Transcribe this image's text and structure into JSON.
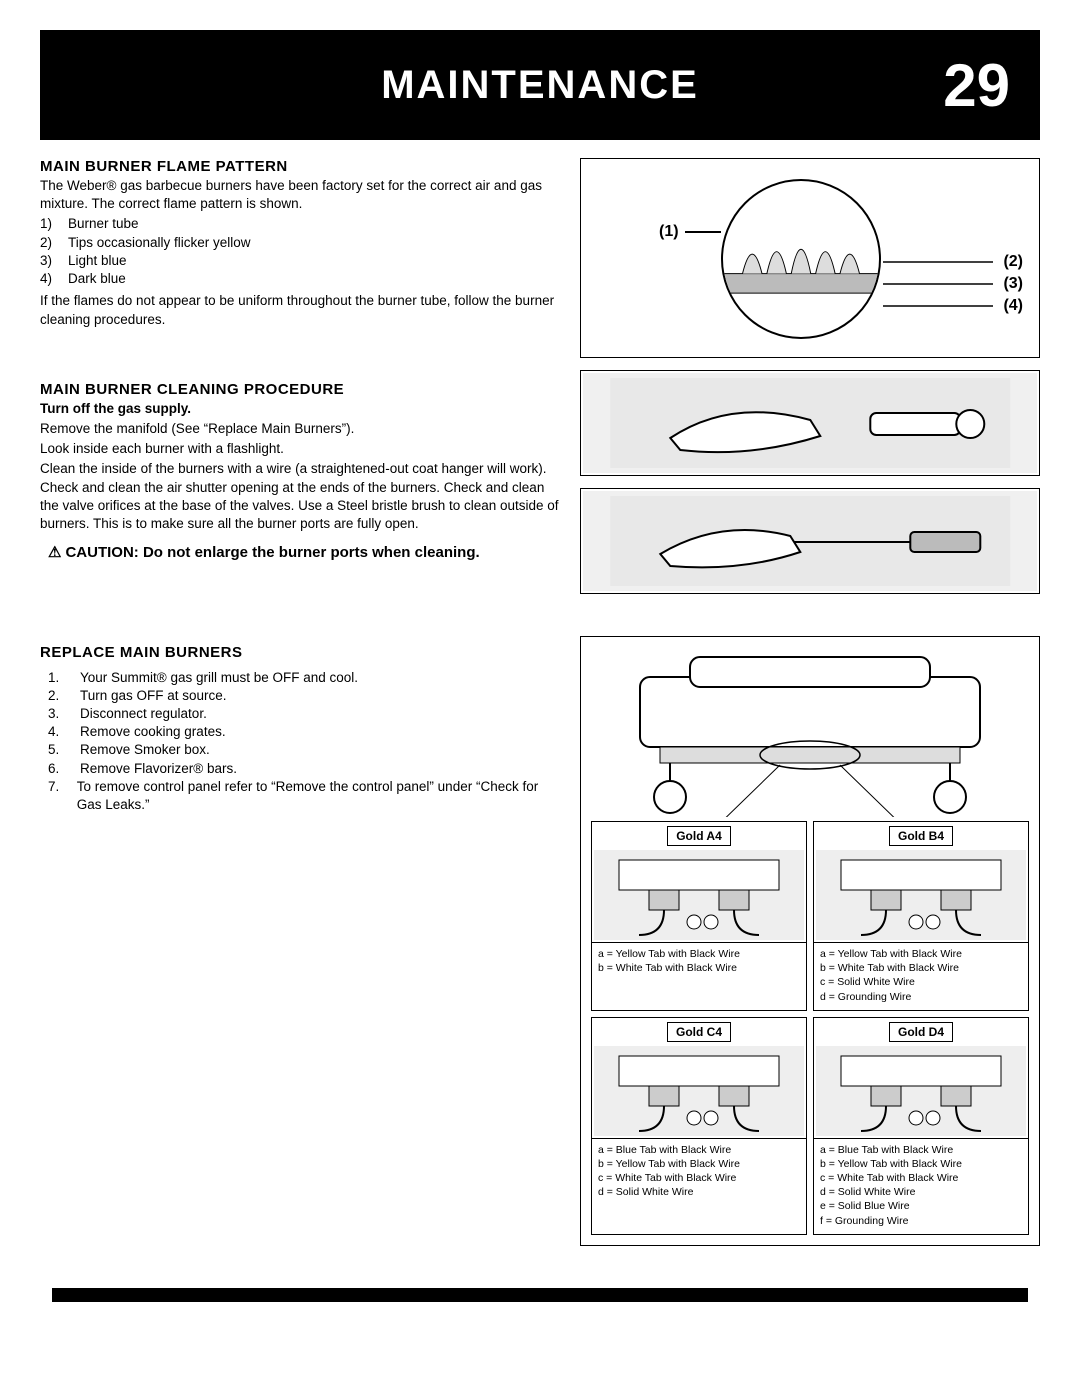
{
  "header": {
    "title": "MAINTENANCE",
    "page_number": "29",
    "bg_color": "#000000",
    "text_color": "#ffffff"
  },
  "section1": {
    "heading": "MAIN BURNER FLAME PATTERN",
    "intro": "The Weber® gas barbecue burners have been factory set for the correct air and gas mixture. The correct flame pattern is shown.",
    "items": [
      {
        "n": "1)",
        "t": "Burner tube"
      },
      {
        "n": "2)",
        "t": "Tips occasionally flicker yellow"
      },
      {
        "n": "3)",
        "t": "Light blue"
      },
      {
        "n": "4)",
        "t": "Dark blue"
      }
    ],
    "tail": "If the flames do not appear to be uniform throughout the burner tube, follow the burner cleaning procedures."
  },
  "flame_callouts": {
    "c1": "(1)",
    "c2": "(2)",
    "c3": "(3)",
    "c4": "(4)"
  },
  "section2": {
    "heading": "MAIN BURNER CLEANING PROCEDURE",
    "bold_line": "Turn off the gas supply.",
    "p1": "Remove the manifold (See “Replace Main Burners”).",
    "p2": "Look inside each burner with a flashlight.",
    "p3": "Clean the inside of the burners with a wire (a straightened-out coat hanger will work). Check and clean the air shutter opening at the ends of the burners. Check and clean the valve orifices at the base of the valves. Use a Steel bristle brush to clean outside of burners. This is to make sure all the burner ports are fully open.",
    "caution": "CAUTION: Do not enlarge the burner ports when cleaning."
  },
  "section3": {
    "heading": "REPLACE MAIN BURNERS",
    "steps": [
      {
        "n": "1.",
        "t": "Your Summit® gas grill must be OFF and cool."
      },
      {
        "n": "2.",
        "t": "Turn gas OFF at source."
      },
      {
        "n": "3.",
        "t": "Disconnect regulator."
      },
      {
        "n": "4.",
        "t": "Remove cooking grates."
      },
      {
        "n": "5.",
        "t": "Remove Smoker box."
      },
      {
        "n": "6.",
        "t": "Remove Flavorizer® bars."
      },
      {
        "n": "7.",
        "t": "To remove control panel refer to “Remove the control panel” under “Check for Gas Leaks.”"
      }
    ]
  },
  "wire_diagrams": {
    "cells": [
      {
        "title": "Gold A4",
        "legend": [
          "a = Yellow Tab with Black Wire",
          "b = White Tab with Black Wire"
        ]
      },
      {
        "title": "Gold B4",
        "legend": [
          "a = Yellow Tab with Black Wire",
          "b = White Tab with Black Wire",
          "c = Solid White Wire",
          "d = Grounding Wire"
        ]
      },
      {
        "title": "Gold C4",
        "legend": [
          "a = Blue Tab with Black Wire",
          "b = Yellow Tab with Black Wire",
          "c = White Tab with Black Wire",
          "d = Solid White Wire"
        ]
      },
      {
        "title": "Gold D4",
        "legend": [
          "a  =  Blue Tab with Black Wire",
          "b  =  Yellow Tab with Black Wire",
          "c  =  White Tab with Black Wire",
          "d  =  Solid White Wire",
          "e  =  Solid Blue Wire",
          "f   =  Grounding Wire"
        ]
      }
    ]
  }
}
